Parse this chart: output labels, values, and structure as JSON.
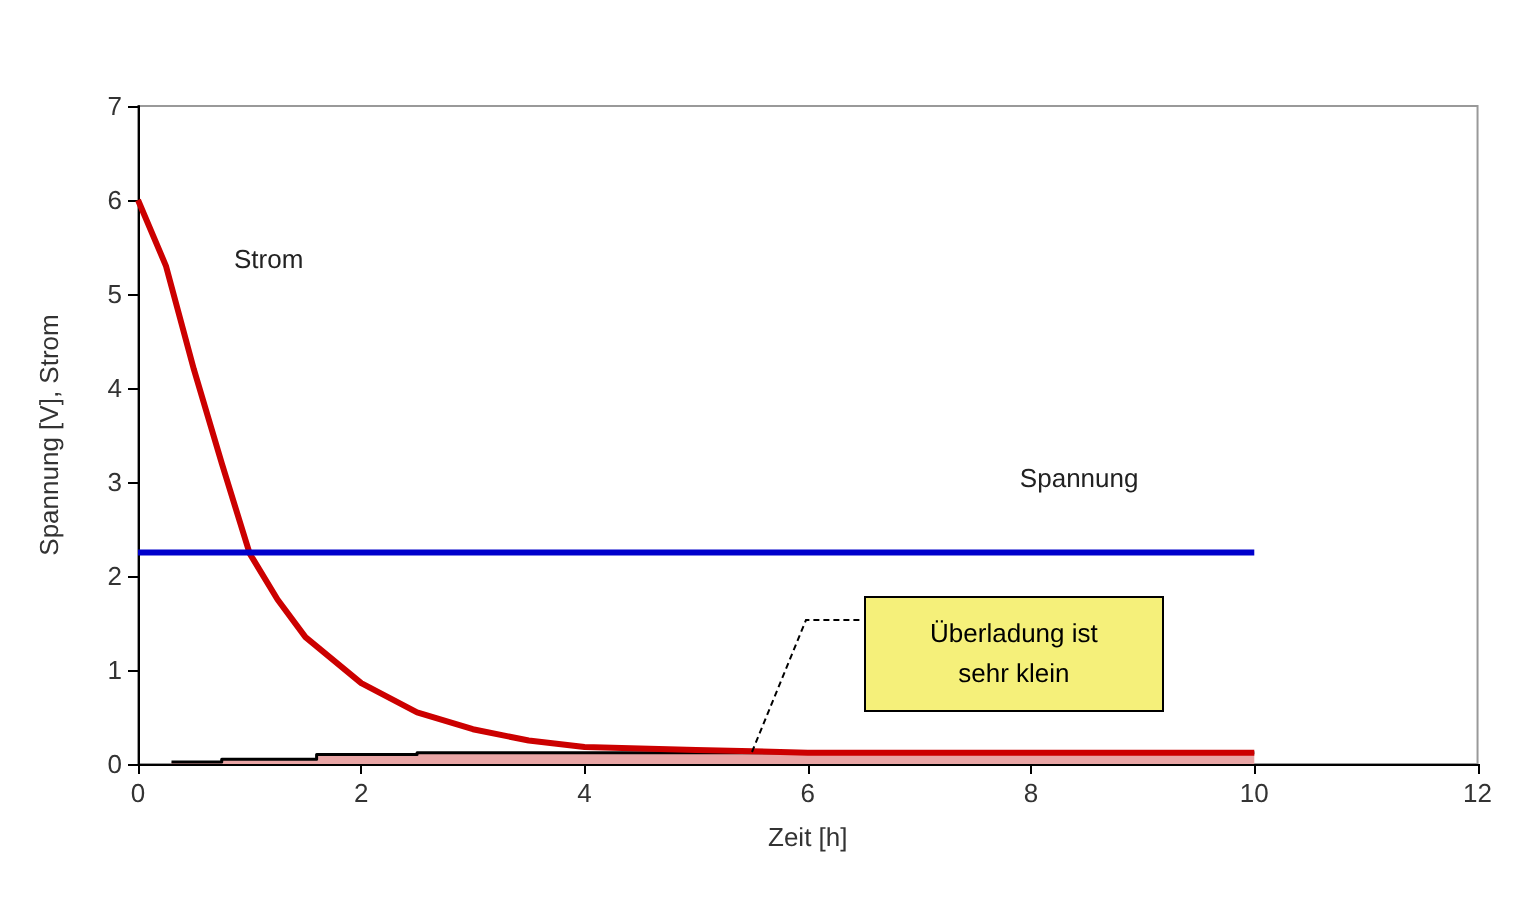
{
  "chart_data": {
    "type": "line",
    "xlabel": "Zeit [h]",
    "ylabel": "Spannung [V], Strom",
    "xlim": [
      0,
      12
    ],
    "xticks": [
      0,
      2,
      4,
      6,
      8,
      10,
      12
    ],
    "ylim": [
      0,
      7
    ],
    "yticks": [
      0,
      1,
      2,
      3,
      4,
      5,
      6,
      7
    ],
    "grid": false,
    "legend": false,
    "marker": "none",
    "series": [
      {
        "name": "Strom",
        "color": "#cc0000",
        "x": [
          0,
          0.25,
          0.5,
          0.75,
          1,
          1.25,
          1.5,
          2,
          2.5,
          3,
          3.5,
          4,
          5,
          6,
          7,
          8,
          10
        ],
        "values": [
          6,
          5.3,
          4.2,
          3.2,
          2.24,
          1.75,
          1.35,
          0.86,
          0.55,
          0.37,
          0.25,
          0.18,
          0.15,
          0.12,
          0.12,
          0.12,
          0.12
        ]
      },
      {
        "name": "Spannung",
        "color": "#0000cc",
        "x": [
          0,
          10
        ],
        "values": [
          2.25,
          2.25
        ]
      },
      {
        "type": "area",
        "color": "#000000",
        "x": [
          0.3,
          0.75,
          0.75,
          1.6,
          1.6,
          2.5,
          2.5,
          10
        ],
        "values": [
          0.02,
          0.02,
          0.05,
          0.05,
          0.1,
          0.1,
          0.12,
          0.12
        ]
      }
    ],
    "annotations": [
      "Überladung ist\nsehr klein"
    ]
  }
}
